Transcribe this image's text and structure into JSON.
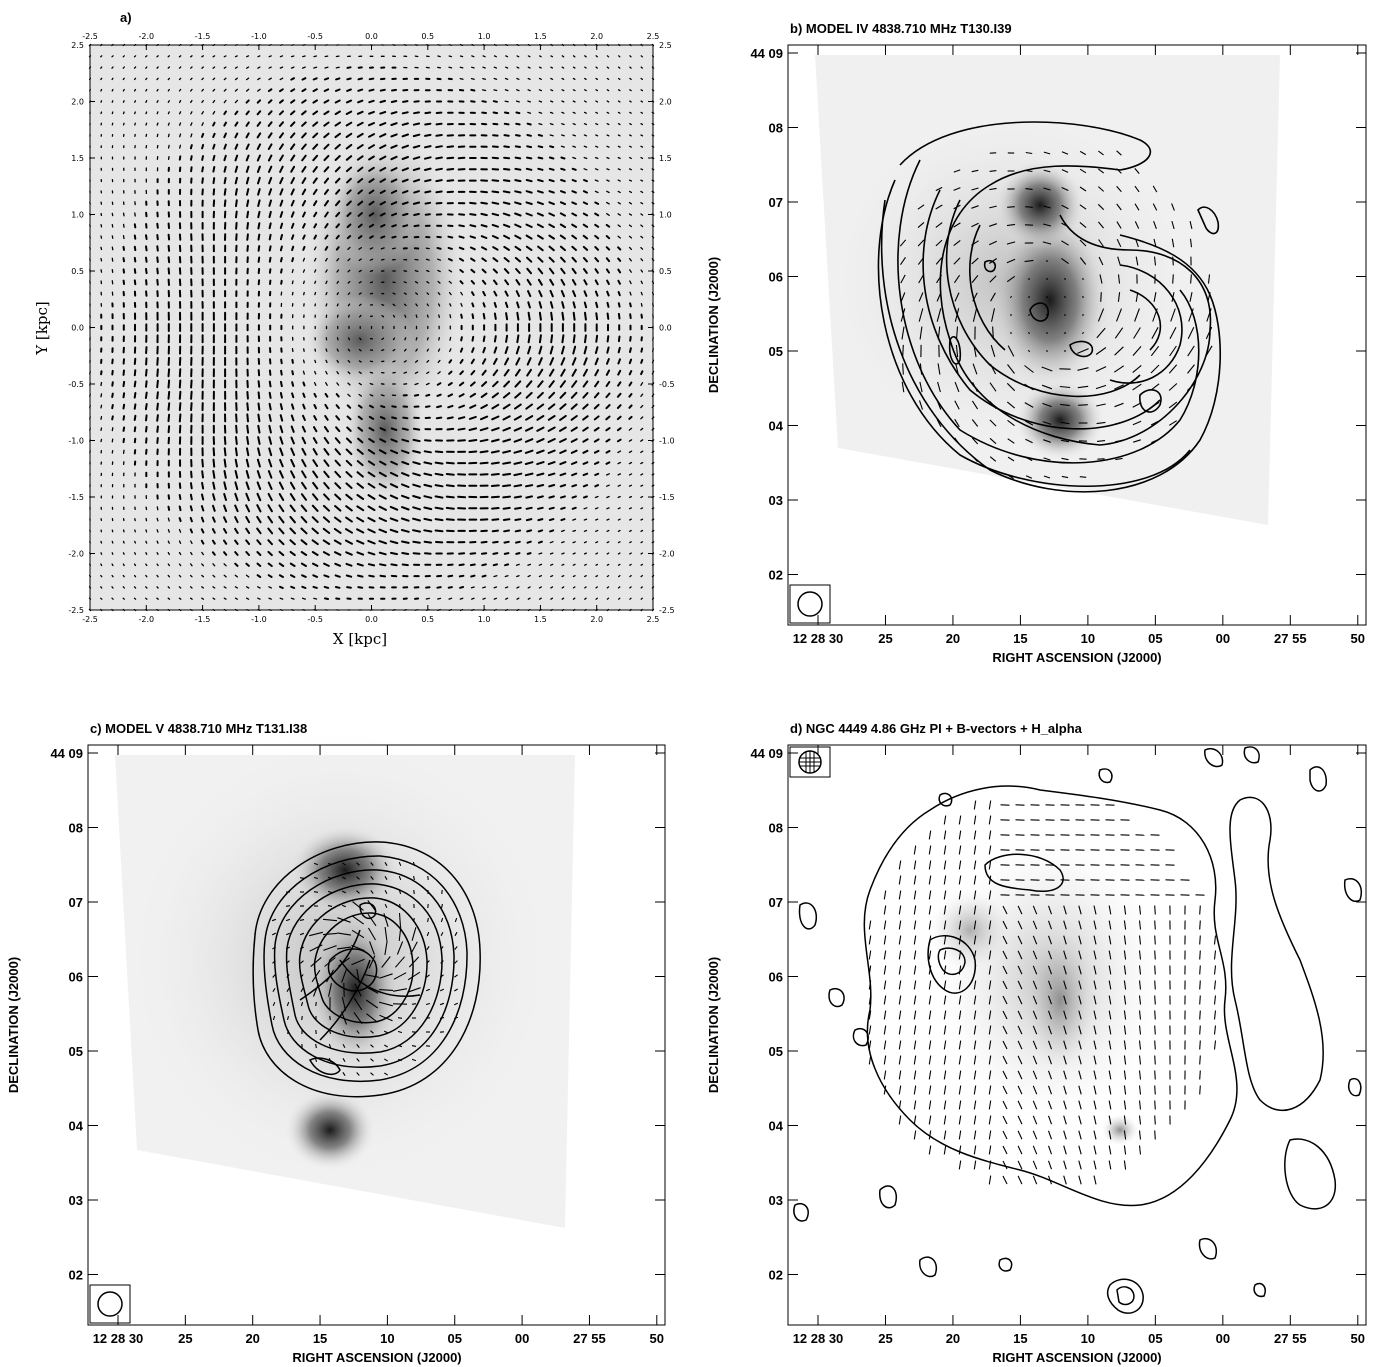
{
  "chart_data": [
    {
      "panel": "a",
      "type": "vector-field",
      "title": "a)",
      "xlabel": "X [kpc]",
      "ylabel": "Y [kpc]",
      "xlim": [
        -2.5,
        2.5
      ],
      "ylim": [
        -2.5,
        2.5
      ],
      "ticks": [
        "-2.5",
        "-2.0",
        "-1.5",
        "-1.0",
        "-0.5",
        "0.0",
        "0.5",
        "1.0",
        "1.5",
        "2.0",
        "2.5"
      ],
      "tick_values": [
        -2.5,
        -2.0,
        -1.5,
        -1.0,
        -0.5,
        0.0,
        0.5,
        1.0,
        1.5,
        2.0,
        2.5
      ],
      "background": "greyscale"
    },
    {
      "panel": "b",
      "type": "contour",
      "title": "b) MODEL IV 4838.710 MHz T130.I39",
      "xlabel": "RIGHT ASCENSION (J2000)",
      "ylabel": "DECLINATION (J2000)",
      "x_ticks": [
        "12 28 30",
        "25",
        "20",
        "15",
        "10",
        "05",
        "00",
        "27 55",
        "50"
      ],
      "y_ticks": [
        "44 09",
        "08",
        "07",
        "06",
        "05",
        "04",
        "03",
        "02"
      ],
      "overlay": "contours + vectors + greyscale"
    },
    {
      "panel": "c",
      "type": "contour",
      "title": "c) MODEL V 4838.710 MHz T131.I38",
      "xlabel": "RIGHT ASCENSION (J2000)",
      "ylabel": "DECLINATION (J2000)",
      "x_ticks": [
        "12 28 30",
        "25",
        "20",
        "15",
        "10",
        "05",
        "00",
        "27 55",
        "50"
      ],
      "y_ticks": [
        "44 09",
        "08",
        "07",
        "06",
        "05",
        "04",
        "03",
        "02"
      ],
      "overlay": "contours + vectors + greyscale"
    },
    {
      "panel": "d",
      "type": "contour",
      "title": "d) NGC 4449 4.86 GHz PI + B-vectors + H_alpha",
      "xlabel": "RIGHT ASCENSION (J2000)",
      "ylabel": "DECLINATION (J2000)",
      "x_ticks": [
        "12 28 30",
        "25",
        "20",
        "15",
        "10",
        "05",
        "00",
        "27 55",
        "50"
      ],
      "y_ticks": [
        "44 09",
        "08",
        "07",
        "06",
        "05",
        "04",
        "03",
        "02"
      ],
      "overlay": "PI contours + B-vectors + H_alpha greyscale"
    }
  ],
  "colors": {
    "ink": "#000000",
    "paper": "#ffffff"
  }
}
